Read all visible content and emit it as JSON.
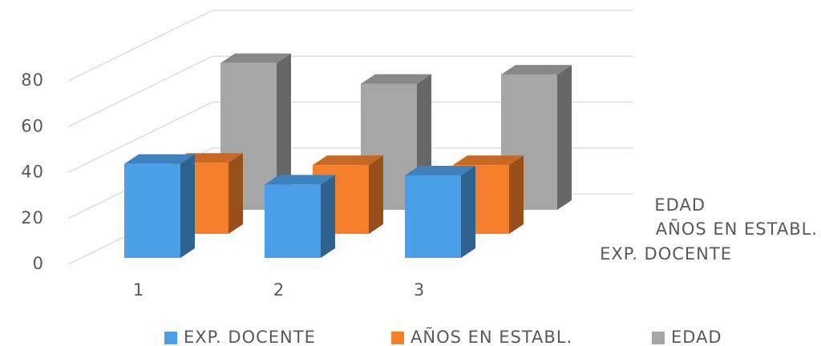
{
  "chart_data": {
    "type": "bar3d",
    "categories": [
      "1",
      "2",
      "3"
    ],
    "series": [
      {
        "name": "EXP. DOCENTE",
        "color": "#4a9fe8",
        "values": [
          41,
          32,
          36
        ]
      },
      {
        "name": "AÑOS EN ESTABL.",
        "color": "#f57f2a",
        "values": [
          31,
          30,
          30
        ]
      },
      {
        "name": "EDAD",
        "color": "#a6a6a6",
        "values": [
          64,
          55,
          59
        ]
      }
    ],
    "ylim": [
      0,
      80
    ],
    "yticks": [
      0,
      20,
      40,
      60,
      80
    ],
    "grid": true,
    "legend": "bottom"
  }
}
